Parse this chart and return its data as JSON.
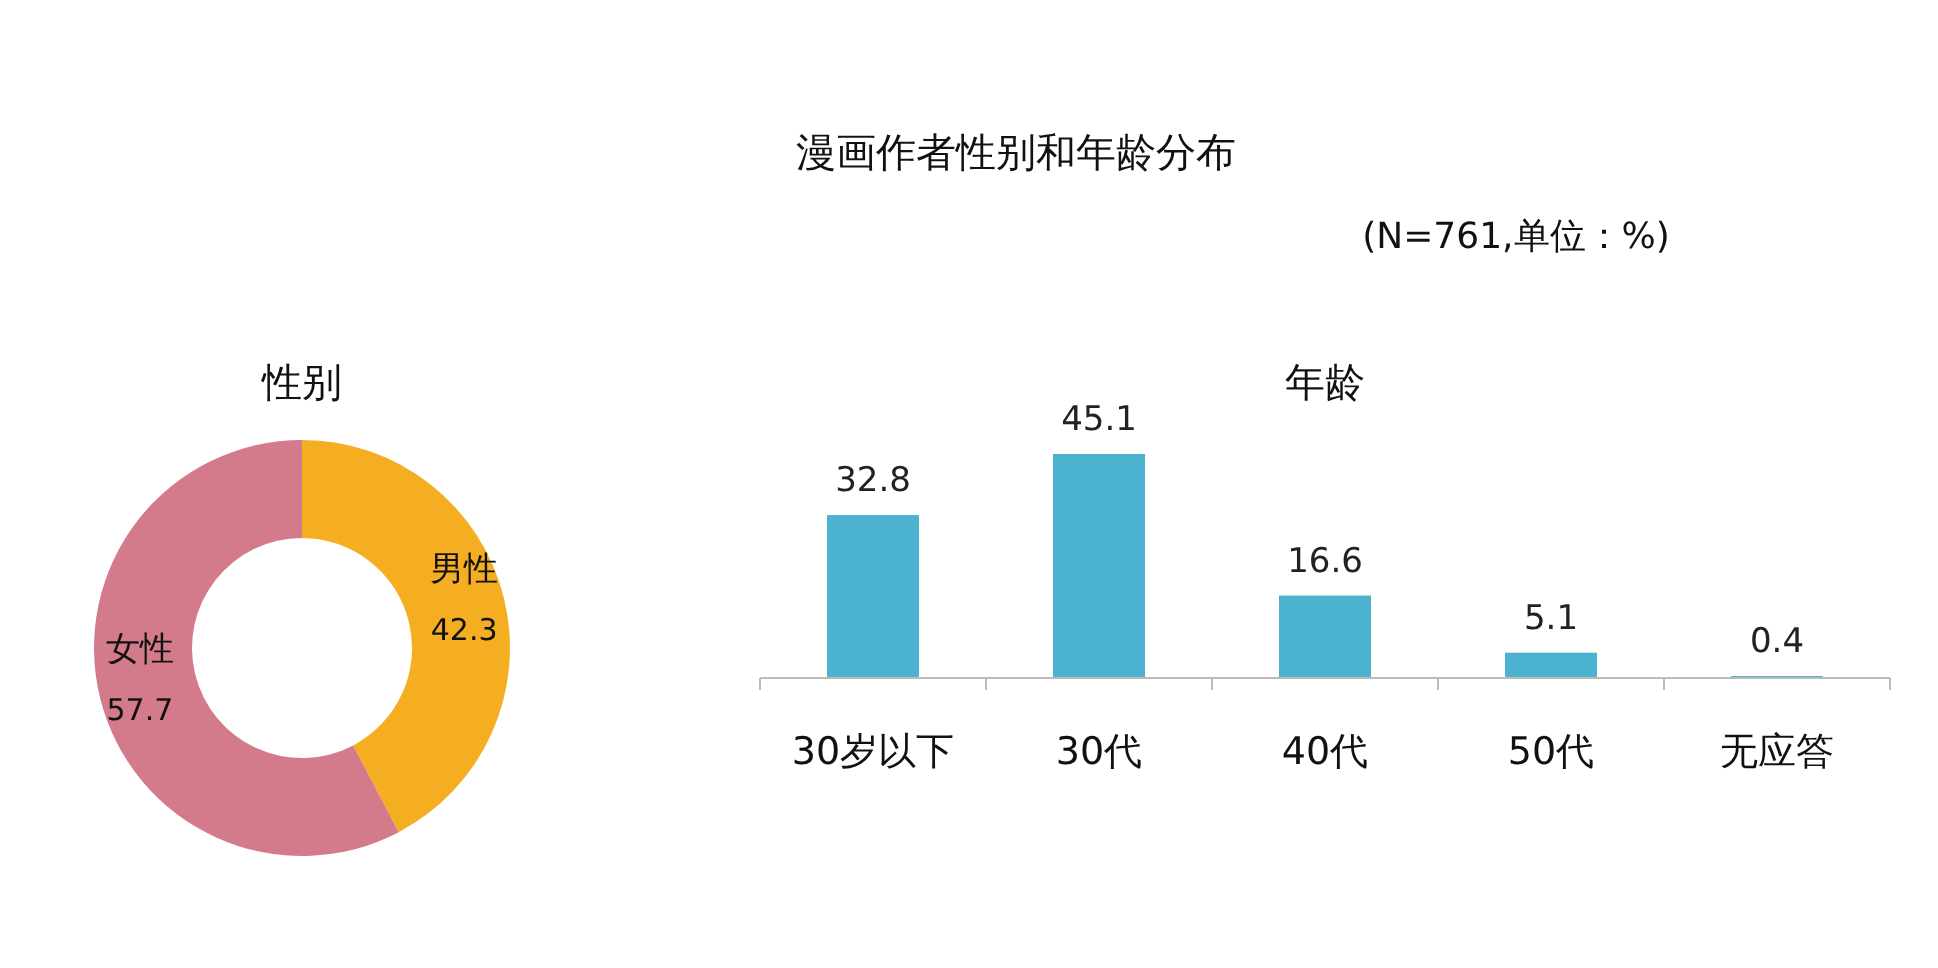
{
  "chart_data": [
    {
      "type": "other",
      "title": "漫画作者性别和年龄分布",
      "subtitle": "(N=761,单位：%)"
    },
    {
      "type": "donut",
      "title": "性别",
      "categories": [
        "男性",
        "女性"
      ],
      "values": [
        42.3,
        57.7
      ],
      "colors": [
        "#f5ae22",
        "#d47b8b"
      ],
      "data_labels": true
    },
    {
      "type": "bar",
      "title": "年龄",
      "categories": [
        "30岁以下",
        "30代",
        "40代",
        "50代",
        "无应答"
      ],
      "values": [
        32.8,
        45.1,
        16.6,
        5.1,
        0.4
      ],
      "color": "#4bb3cf",
      "data_labels": true
    }
  ]
}
